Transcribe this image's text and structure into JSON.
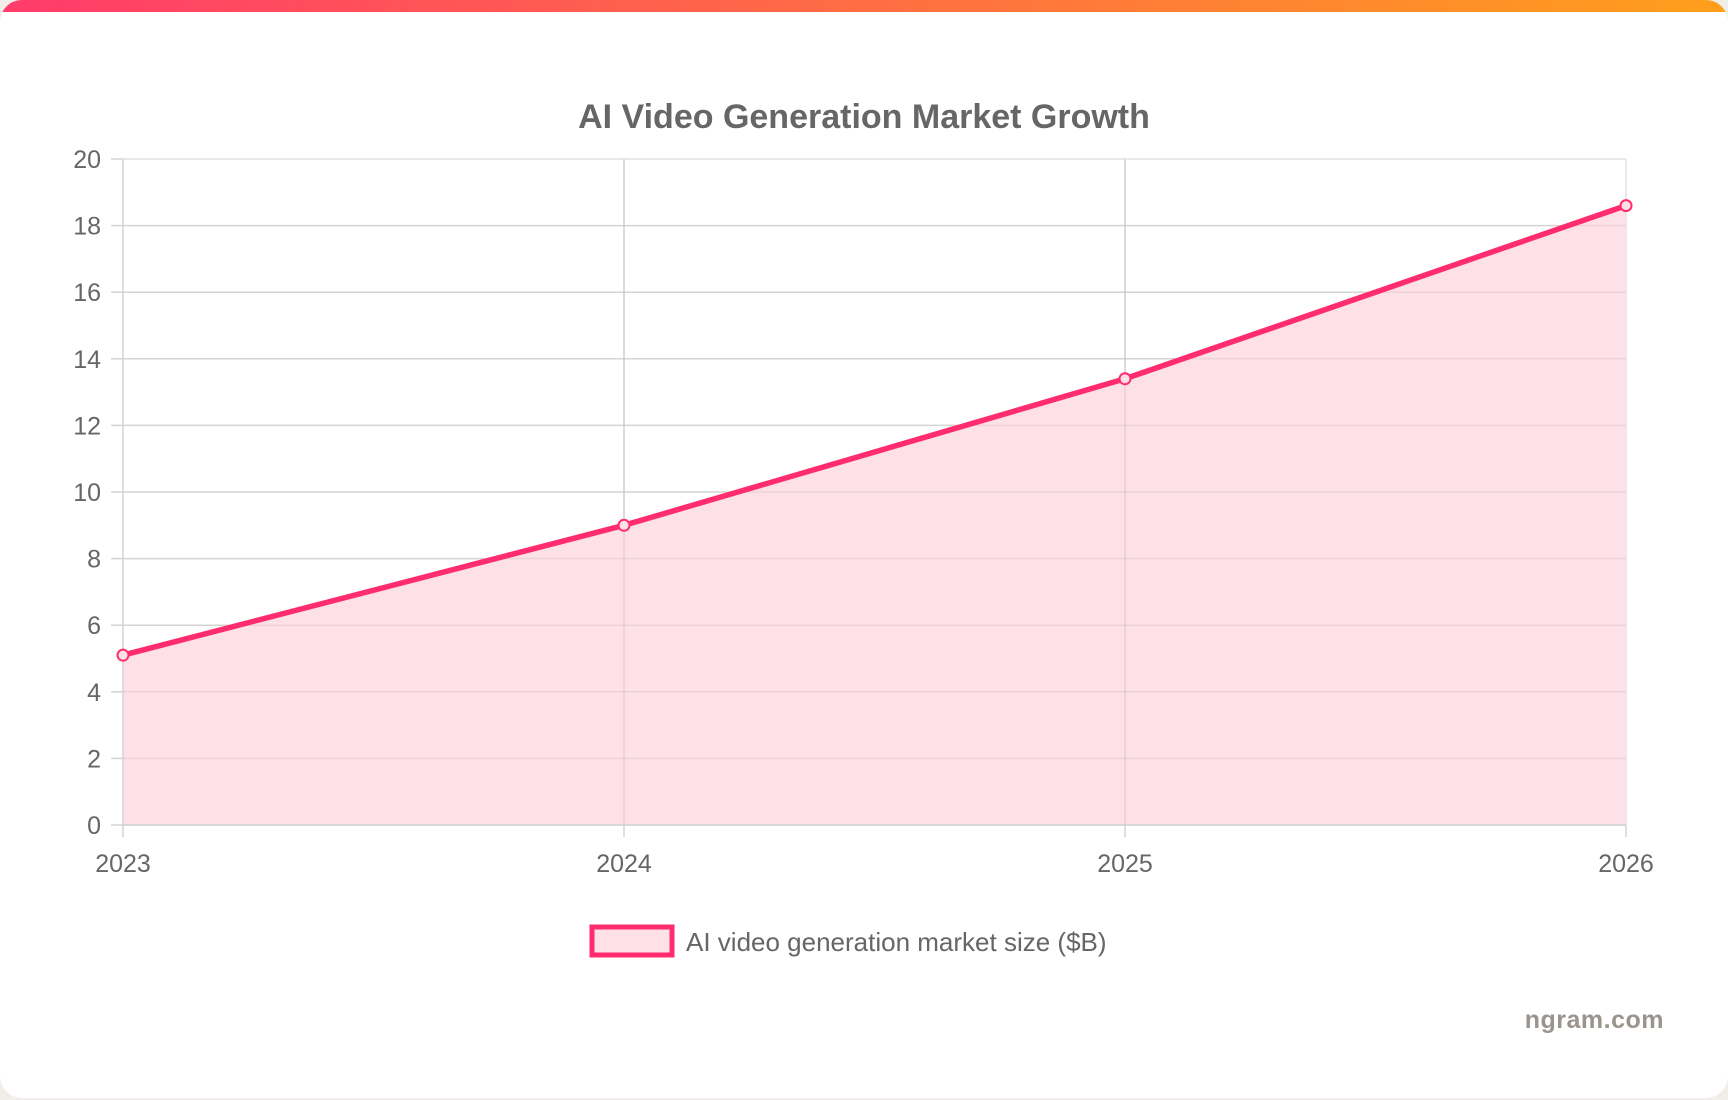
{
  "brand": {
    "gradient_start": "#ff3b6b",
    "gradient_end": "#ff9f1c",
    "watermark": "ngram.com"
  },
  "chart_data": {
    "type": "area",
    "title": "AI Video Generation Market Growth",
    "categories": [
      "2023",
      "2024",
      "2025",
      "2026"
    ],
    "series": [
      {
        "name": "AI video generation market size ($B)",
        "values": [
          5.1,
          9.0,
          13.4,
          18.6
        ],
        "color": "#ff2d6f",
        "fill": "#fde0e8"
      }
    ],
    "ylim": [
      0,
      20
    ],
    "yticks": [
      0,
      2,
      4,
      6,
      8,
      10,
      12,
      14,
      16,
      18,
      20
    ],
    "grid": true,
    "legend_position": "bottom-center"
  }
}
